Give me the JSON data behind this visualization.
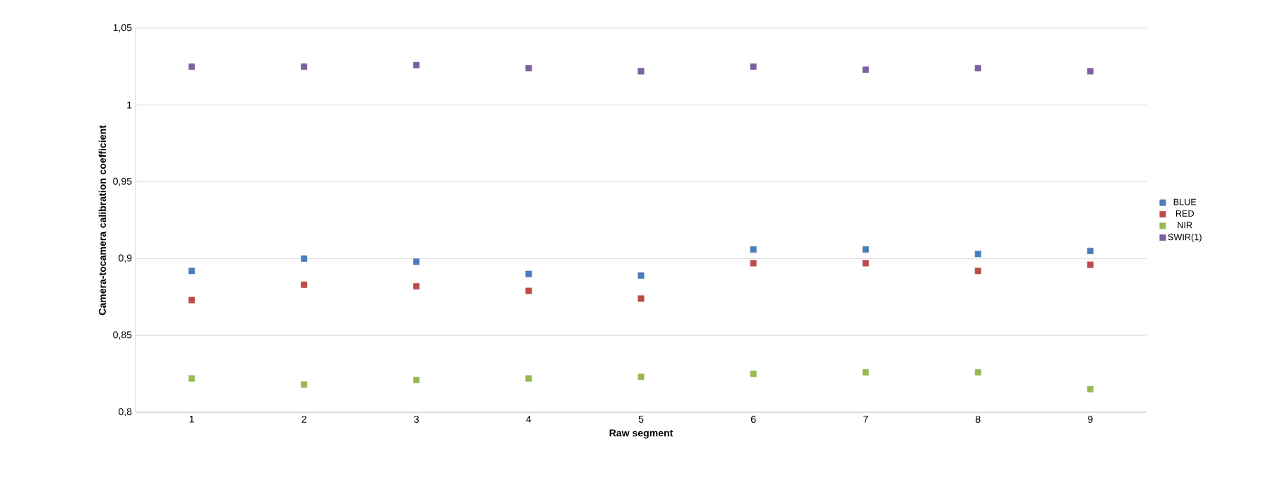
{
  "chart_data": {
    "type": "scatter",
    "xlabel": "Raw segment",
    "ylabel": "Camera-tocamera calibration coefficient",
    "categories": [
      "1",
      "2",
      "3",
      "4",
      "5",
      "6",
      "7",
      "8",
      "9"
    ],
    "series": [
      {
        "name": "BLUE",
        "color": "#4a7ebb",
        "values": [
          0.892,
          0.9,
          0.898,
          0.89,
          0.889,
          0.906,
          0.906,
          0.903,
          0.905
        ]
      },
      {
        "name": "RED",
        "color": "#be4b48",
        "values": [
          0.873,
          0.883,
          0.882,
          0.879,
          0.874,
          0.897,
          0.897,
          0.892,
          0.896
        ]
      },
      {
        "name": "NIR",
        "color": "#98b954",
        "values": [
          0.822,
          0.818,
          0.821,
          0.822,
          0.823,
          0.825,
          0.826,
          0.826,
          0.815
        ]
      },
      {
        "name": "SWIR(1)",
        "color": "#7d60a0",
        "values": [
          1.025,
          1.025,
          1.026,
          1.024,
          1.022,
          1.025,
          1.023,
          1.024,
          1.022
        ]
      }
    ],
    "ylim": [
      0.8,
      1.05
    ],
    "yticks": [
      {
        "value": 0.8,
        "label": "0,8"
      },
      {
        "value": 0.85,
        "label": "0,85"
      },
      {
        "value": 0.9,
        "label": "0,9"
      },
      {
        "value": 0.95,
        "label": "0,95"
      },
      {
        "value": 1,
        "label": "1"
      },
      {
        "value": 1.05,
        "label": "1,05"
      }
    ],
    "grid": "y",
    "legend": "right",
    "marker": "square"
  }
}
